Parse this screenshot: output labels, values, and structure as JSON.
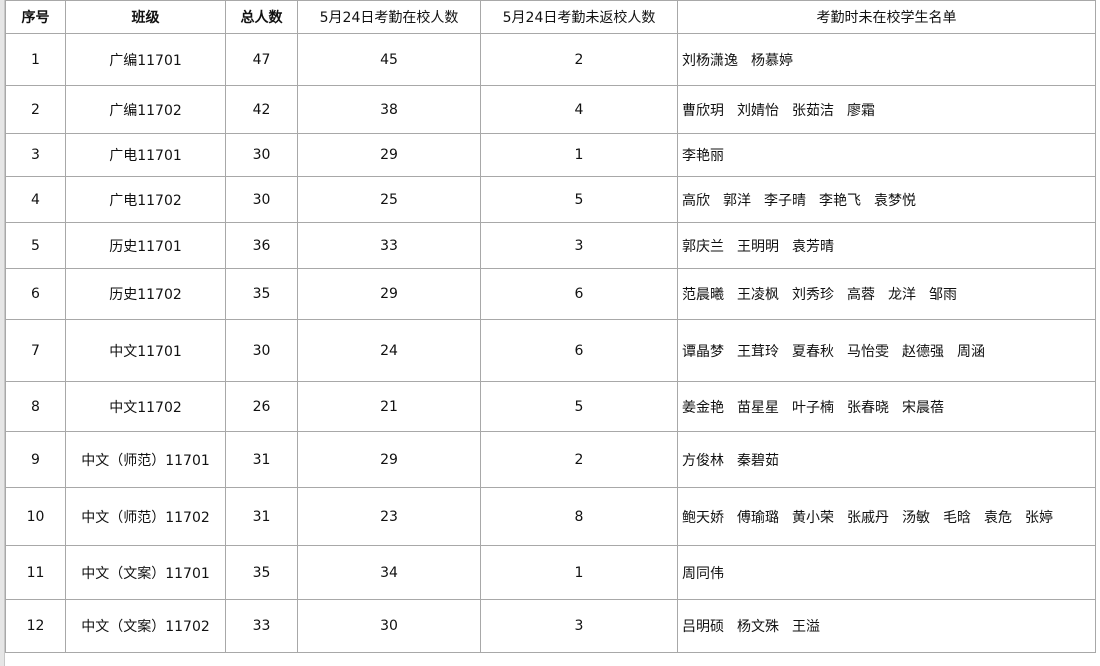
{
  "table": {
    "header": [
      "序号",
      "班级",
      "总人数",
      "5月24日考勤在校人数",
      "5月24日考勤未返校人数",
      "考勤时未在校学生名单"
    ],
    "rows": [
      {
        "no": 1,
        "class": "广编11701",
        "total": 47,
        "present": 45,
        "absent_count": 2,
        "absent": [
          "刘杨潇逸",
          "杨慕婷"
        ]
      },
      {
        "no": 2,
        "class": "广编11702",
        "total": 42,
        "present": 38,
        "absent_count": 4,
        "absent": [
          "曹欣玥",
          "刘婧怡",
          "张茹洁",
          "廖霜"
        ]
      },
      {
        "no": 3,
        "class": "广电11701",
        "total": 30,
        "present": 29,
        "absent_count": 1,
        "absent": [
          "李艳丽"
        ]
      },
      {
        "no": 4,
        "class": "广电11702",
        "total": 30,
        "present": 25,
        "absent_count": 5,
        "absent": [
          "高欣",
          "郭洋",
          "李子晴",
          "李艳飞",
          "袁梦悦"
        ]
      },
      {
        "no": 5,
        "class": "历史11701",
        "total": 36,
        "present": 33,
        "absent_count": 3,
        "absent": [
          "郭庆兰",
          "王明明",
          "袁芳晴"
        ]
      },
      {
        "no": 6,
        "class": "历史11702",
        "total": 35,
        "present": 29,
        "absent_count": 6,
        "absent": [
          "范晨曦",
          "王凌枫",
          "刘秀珍",
          "高蓉",
          "龙洋",
          "邹雨"
        ]
      },
      {
        "no": 7,
        "class": "中文11701",
        "total": 30,
        "present": 24,
        "absent_count": 6,
        "absent": [
          "谭晶梦",
          "王茸玲",
          "夏春秋",
          "马怡雯",
          "赵德强",
          "周涵"
        ]
      },
      {
        "no": 8,
        "class": "中文11702",
        "total": 26,
        "present": 21,
        "absent_count": 5,
        "absent": [
          "姜金艳",
          "苗星星",
          "叶子楠",
          "张春晓",
          "宋晨蓓"
        ]
      },
      {
        "no": 9,
        "class": "中文（师范）11701",
        "total": 31,
        "present": 29,
        "absent_count": 2,
        "absent": [
          "方俊林",
          "秦碧茹"
        ]
      },
      {
        "no": 10,
        "class": "中文（师范）11702",
        "total": 31,
        "present": 23,
        "absent_count": 8,
        "absent": [
          "鲍天娇",
          "傅瑜璐",
          "黄小荣",
          "张戚丹",
          "汤敏",
          "毛晗",
          "袁危",
          "张婷"
        ]
      },
      {
        "no": 11,
        "class": "中文（文案）11701",
        "total": 35,
        "present": 34,
        "absent_count": 1,
        "absent": [
          "周同伟"
        ]
      },
      {
        "no": 12,
        "class": "中文（文案）11702",
        "total": 33,
        "present": 30,
        "absent_count": 3,
        "absent": [
          "吕明硕",
          "杨文殊",
          "王溢"
        ]
      }
    ]
  }
}
